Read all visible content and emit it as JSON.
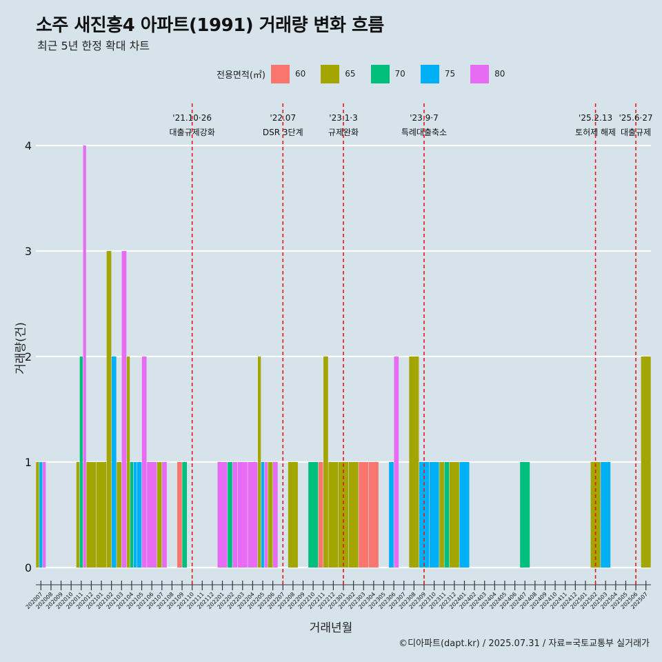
{
  "title": "소주 새진흥4 아파트(1991) 거래량 변화 흐름",
  "subtitle": "최근 5년 한정 확대 차트",
  "legend_title": "전용면적(㎡)",
  "credit": "©디아파트(dapt.kr) / 2025.07.31 / 자료=국토교통부 실거래가",
  "chart_data": {
    "type": "bar",
    "title": "소주 새진흥4 아파트(1991) 거래량 변화 흐름",
    "subtitle": "최근 5년 한정 확대 차트",
    "xlabel": "거래년월",
    "ylabel": "거래량(건)",
    "ylim": [
      0,
      4
    ],
    "yticks": [
      0,
      1,
      2,
      3,
      4
    ],
    "grid": "horizontal",
    "legend_position": "top",
    "categories": [
      "202007",
      "202008",
      "202009",
      "202010",
      "202011",
      "202012",
      "202101",
      "202102",
      "202103",
      "202104",
      "202105",
      "202106",
      "202107",
      "202108",
      "202109",
      "202110",
      "202111",
      "202112",
      "202201",
      "202202",
      "202203",
      "202204",
      "202205",
      "202206",
      "202207",
      "202208",
      "202209",
      "202210",
      "202211",
      "202212",
      "202301",
      "202302",
      "202303",
      "202304",
      "202305",
      "202306",
      "202307",
      "202308",
      "202309",
      "202310",
      "202311",
      "202312",
      "202401",
      "202402",
      "202403",
      "202404",
      "202405",
      "202406",
      "202407",
      "202408",
      "202409",
      "202410",
      "202411",
      "202412",
      "202501",
      "202502",
      "202503",
      "202504",
      "202505",
      "202506",
      "202507"
    ],
    "series": [
      {
        "name": "60",
        "color": "#F8766D",
        "values": [
          0,
          0,
          0,
          0,
          0,
          0,
          0,
          0,
          0,
          0,
          0,
          0,
          0,
          0,
          1,
          0,
          0,
          0,
          0,
          0,
          0,
          0,
          0,
          0,
          0,
          0,
          0,
          0,
          1,
          0,
          0,
          0,
          1,
          1,
          0,
          0,
          0,
          0,
          0,
          0,
          0,
          0,
          0,
          0,
          0,
          0,
          0,
          0,
          0,
          0,
          0,
          0,
          0,
          0,
          0,
          0,
          0,
          0,
          0,
          0,
          0
        ]
      },
      {
        "name": "65",
        "color": "#A3A500",
        "values": [
          1,
          0,
          0,
          0,
          1,
          1,
          1,
          3,
          1,
          2,
          0,
          0,
          1,
          0,
          0,
          0,
          0,
          0,
          0,
          0,
          0,
          0,
          2,
          1,
          0,
          1,
          0,
          0,
          2,
          1,
          1,
          1,
          0,
          0,
          0,
          0,
          0,
          2,
          0,
          0,
          1,
          1,
          0,
          0,
          0,
          0,
          0,
          0,
          0,
          0,
          0,
          0,
          0,
          0,
          0,
          1,
          0,
          0,
          0,
          0,
          2
        ]
      },
      {
        "name": "70",
        "color": "#00BF7D",
        "values": [
          0,
          0,
          0,
          0,
          2,
          0,
          0,
          0,
          0,
          1,
          0,
          0,
          0,
          0,
          1,
          0,
          0,
          0,
          0,
          1,
          0,
          0,
          0,
          0,
          0,
          0,
          0,
          1,
          0,
          0,
          0,
          0,
          0,
          0,
          0,
          0,
          0,
          0,
          0,
          0,
          1,
          0,
          0,
          0,
          0,
          0,
          0,
          0,
          1,
          0,
          0,
          0,
          0,
          0,
          0,
          0,
          0,
          0,
          0,
          0,
          0
        ]
      },
      {
        "name": "75",
        "color": "#00B0F6",
        "values": [
          1,
          0,
          0,
          0,
          0,
          0,
          0,
          2,
          0,
          1,
          1,
          0,
          0,
          0,
          0,
          0,
          0,
          0,
          0,
          0,
          0,
          0,
          1,
          0,
          0,
          0,
          0,
          0,
          0,
          0,
          0,
          0,
          0,
          0,
          0,
          1,
          0,
          0,
          1,
          1,
          0,
          0,
          1,
          0,
          0,
          0,
          0,
          0,
          0,
          0,
          0,
          0,
          0,
          0,
          0,
          0,
          1,
          0,
          0,
          0,
          0
        ]
      },
      {
        "name": "80",
        "color": "#E76BF3",
        "values": [
          1,
          0,
          0,
          0,
          4,
          0,
          0,
          0,
          3,
          0,
          2,
          1,
          1,
          0,
          0,
          0,
          0,
          0,
          1,
          1,
          1,
          1,
          1,
          1,
          0,
          0,
          0,
          0,
          0,
          0,
          0,
          0,
          0,
          0,
          0,
          2,
          0,
          0,
          0,
          0,
          0,
          0,
          0,
          0,
          0,
          0,
          0,
          0,
          0,
          0,
          0,
          0,
          0,
          0,
          0,
          0,
          0,
          0,
          0,
          0,
          0
        ]
      }
    ],
    "annotations": [
      {
        "at": "202110",
        "date": "'21.10·26",
        "label": "대출규제강화"
      },
      {
        "at": "202207",
        "date": "'22.07",
        "label": "DSR 3단계"
      },
      {
        "at": "202301",
        "date": "'23.1·3",
        "label": "규제완화"
      },
      {
        "at": "202309",
        "date": "'23.9·7",
        "label": "특례대출축소"
      },
      {
        "at": "202502",
        "date": "'25.2.13",
        "label": "토허제 해제"
      },
      {
        "at": "202506",
        "date": "'25.6·27",
        "label": "대출규제"
      }
    ]
  }
}
